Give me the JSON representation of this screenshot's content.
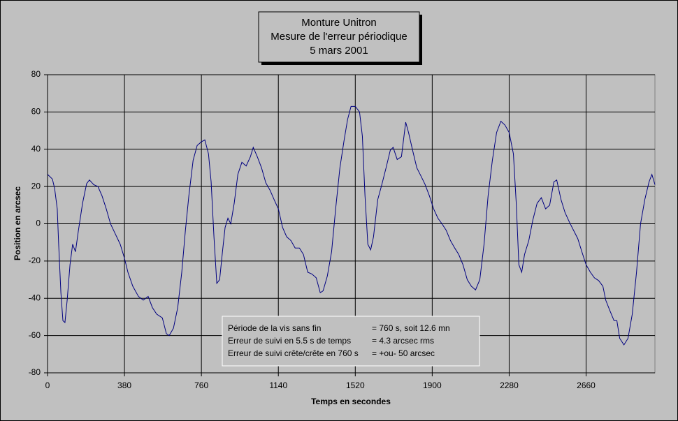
{
  "chart_data": {
    "type": "line",
    "title": [
      "Monture Unitron",
      "Mesure de l'erreur périodique",
      "5 mars 2001"
    ],
    "x_label": "Temps en secondes",
    "y_label": "Position en arcsec",
    "annotation": [
      [
        "Période de la vis sans fin",
        "= 760 s, soit 12.6 mn"
      ],
      [
        "Erreur de suivi en 5.5 s de temps",
        "= 4.3 arcsec rms"
      ],
      [
        "Erreur de suivi crête/crête en 760 s",
        "= +ou- 50 arcsec"
      ]
    ],
    "xlim": [
      0,
      3000
    ],
    "xticks": [
      0,
      380,
      760,
      1140,
      1520,
      1900,
      2280,
      2660
    ],
    "ylim": [
      -80,
      80
    ],
    "yticks": [
      -80,
      -60,
      -40,
      -20,
      0,
      20,
      40,
      60,
      80
    ],
    "grid": true,
    "series": [
      {
        "color": "#000080",
        "x": [
          0,
          24,
          35,
          48,
          55,
          66,
          76,
          86,
          97,
          111,
          124,
          138,
          152,
          173,
          193,
          207,
          228,
          249,
          269,
          290,
          311,
          335,
          359,
          380,
          397,
          421,
          449,
          473,
          497,
          518,
          539,
          567,
          587,
          601,
          622,
          643,
          663,
          681,
          698,
          719,
          739,
          760,
          777,
          795,
          808,
          822,
          836,
          850,
          864,
          877,
          891,
          905,
          922,
          940,
          960,
          981,
          1002,
          1016,
          1036,
          1057,
          1078,
          1099,
          1119,
          1140,
          1161,
          1181,
          1202,
          1223,
          1244,
          1264,
          1285,
          1306,
          1327,
          1347,
          1361,
          1382,
          1403,
          1423,
          1444,
          1465,
          1482,
          1499,
          1520,
          1541,
          1555,
          1568,
          1582,
          1596,
          1610,
          1631,
          1651,
          1672,
          1693,
          1707,
          1727,
          1748,
          1769,
          1783,
          1803,
          1824,
          1845,
          1865,
          1886,
          1907,
          1928,
          1948,
          1969,
          1990,
          2011,
          2031,
          2052,
          2073,
          2093,
          2114,
          2135,
          2156,
          2176,
          2197,
          2218,
          2239,
          2259,
          2280,
          2301,
          2315,
          2328,
          2342,
          2356,
          2377,
          2397,
          2418,
          2439,
          2460,
          2480,
          2501,
          2515,
          2536,
          2556,
          2577,
          2598,
          2619,
          2639,
          2660,
          2681,
          2701,
          2722,
          2743,
          2757,
          2777,
          2798,
          2812,
          2826,
          2847,
          2867,
          2888,
          2909,
          2929,
          2950,
          2971,
          2985,
          3000
        ],
        "values": [
          26.5,
          24,
          19,
          8,
          -11,
          -37,
          -52,
          -53,
          -41,
          -22,
          -11,
          -15,
          -4,
          11,
          21.5,
          23.5,
          21,
          20,
          15,
          8,
          0,
          -5.5,
          -11,
          -18.5,
          -26,
          -33.5,
          -39,
          -41,
          -39,
          -45,
          -48.5,
          -50.5,
          -59,
          -60,
          -56,
          -45,
          -26,
          -3.5,
          15,
          34,
          42,
          44,
          45,
          37.5,
          22.5,
          -7,
          -32,
          -30,
          -15,
          -2,
          3,
          0,
          11,
          26.5,
          33,
          31,
          36,
          41,
          36,
          30,
          22,
          18,
          13,
          8,
          -2,
          -7,
          -9,
          -13,
          -13,
          -16.5,
          -26,
          -27,
          -29,
          -37,
          -36,
          -28,
          -15,
          8,
          30,
          45,
          56,
          63,
          63,
          60,
          47,
          15,
          -11,
          -14,
          -7,
          13,
          21,
          30,
          39.5,
          41,
          34.5,
          36,
          54.5,
          49,
          39.5,
          30,
          25.5,
          21,
          15,
          8,
          3,
          0,
          -3.5,
          -9,
          -13,
          -16.5,
          -22,
          -30,
          -33.5,
          -35.5,
          -30,
          -11,
          15,
          34,
          49,
          55,
          53,
          49,
          37.5,
          11,
          -22,
          -26,
          -16.5,
          -9,
          2,
          11,
          14,
          8,
          10,
          22.5,
          23.5,
          13,
          6,
          1,
          -3.5,
          -8,
          -15,
          -22,
          -26,
          -29,
          -30.5,
          -33.5,
          -41,
          -46.5,
          -52,
          -52,
          -61.5,
          -65,
          -61.5,
          -48.5,
          -26,
          0,
          13,
          22.5,
          26.5,
          21
        ]
      }
    ]
  }
}
